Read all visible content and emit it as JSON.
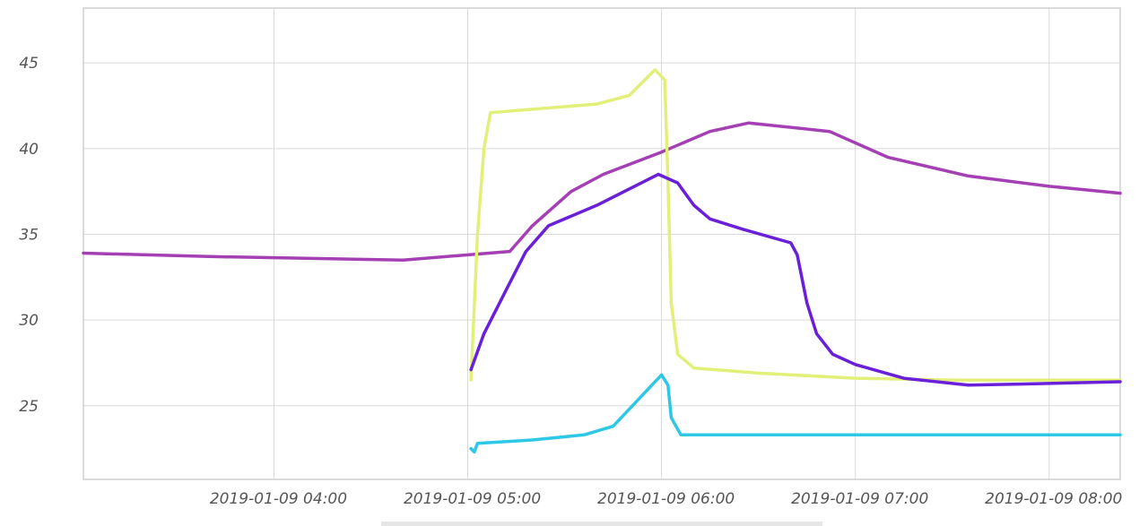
{
  "chart_data": {
    "type": "line",
    "title": "",
    "xlabel": "",
    "ylabel": "",
    "xlim": [
      "2019-01-09 03:01",
      "2019-01-09 08:22"
    ],
    "ylim": [
      20.7,
      48.2
    ],
    "x_ticks": [
      "2019-01-09 04:00",
      "2019-01-09 05:00",
      "2019-01-09 06:00",
      "2019-01-09 07:00",
      "2019-01-09 08:00"
    ],
    "y_ticks": [
      25,
      30,
      35,
      40,
      45
    ],
    "grid": true,
    "series": [
      {
        "color": "#a43fb4",
        "points": [
          [
            "2019-01-09 03:01",
            33.9
          ],
          [
            "2019-01-09 03:40",
            33.7
          ],
          [
            "2019-01-09 04:40",
            33.5
          ],
          [
            "2019-01-09 05:13",
            34.0
          ],
          [
            "2019-01-09 05:20",
            35.5
          ],
          [
            "2019-01-09 05:32",
            37.5
          ],
          [
            "2019-01-09 05:42",
            38.5
          ],
          [
            "2019-01-09 06:00",
            39.8
          ],
          [
            "2019-01-09 06:15",
            41.0
          ],
          [
            "2019-01-09 06:27",
            41.5
          ],
          [
            "2019-01-09 06:52",
            41.0
          ],
          [
            "2019-01-09 07:10",
            39.5
          ],
          [
            "2019-01-09 07:35",
            38.4
          ],
          [
            "2019-01-09 08:00",
            37.8
          ],
          [
            "2019-01-09 08:22",
            37.4
          ]
        ]
      },
      {
        "color": "#e2f07a",
        "points": [
          [
            "2019-01-09 05:01",
            26.5
          ],
          [
            "2019-01-09 05:03",
            35.0
          ],
          [
            "2019-01-09 05:05",
            40.0
          ],
          [
            "2019-01-09 05:07",
            42.1
          ],
          [
            "2019-01-09 05:20",
            42.3
          ],
          [
            "2019-01-09 05:40",
            42.6
          ],
          [
            "2019-01-09 05:50",
            43.1
          ],
          [
            "2019-01-09 05:58",
            44.6
          ],
          [
            "2019-01-09 06:01",
            44.0
          ],
          [
            "2019-01-09 06:02",
            38.0
          ],
          [
            "2019-01-09 06:03",
            31.0
          ],
          [
            "2019-01-09 06:05",
            28.0
          ],
          [
            "2019-01-09 06:10",
            27.2
          ],
          [
            "2019-01-09 06:30",
            26.9
          ],
          [
            "2019-01-09 07:00",
            26.6
          ],
          [
            "2019-01-09 07:30",
            26.5
          ],
          [
            "2019-01-09 08:22",
            26.5
          ]
        ]
      },
      {
        "color": "#6a1fd8",
        "points": [
          [
            "2019-01-09 05:01",
            27.1
          ],
          [
            "2019-01-09 05:05",
            29.2
          ],
          [
            "2019-01-09 05:12",
            31.8
          ],
          [
            "2019-01-09 05:18",
            34.0
          ],
          [
            "2019-01-09 05:25",
            35.5
          ],
          [
            "2019-01-09 05:40",
            36.7
          ],
          [
            "2019-01-09 05:59",
            38.5
          ],
          [
            "2019-01-09 06:05",
            38.0
          ],
          [
            "2019-01-09 06:10",
            36.7
          ],
          [
            "2019-01-09 06:15",
            35.9
          ],
          [
            "2019-01-09 06:25",
            35.3
          ],
          [
            "2019-01-09 06:40",
            34.5
          ],
          [
            "2019-01-09 06:42",
            33.8
          ],
          [
            "2019-01-09 06:45",
            31.0
          ],
          [
            "2019-01-09 06:48",
            29.2
          ],
          [
            "2019-01-09 06:53",
            28.0
          ],
          [
            "2019-01-09 07:00",
            27.4
          ],
          [
            "2019-01-09 07:15",
            26.6
          ],
          [
            "2019-01-09 07:35",
            26.2
          ],
          [
            "2019-01-09 08:00",
            26.3
          ],
          [
            "2019-01-09 08:22",
            26.4
          ]
        ]
      },
      {
        "color": "#2ec8e6",
        "points": [
          [
            "2019-01-09 05:01",
            22.5
          ],
          [
            "2019-01-09 05:02",
            22.3
          ],
          [
            "2019-01-09 05:03",
            22.8
          ],
          [
            "2019-01-09 05:20",
            23.0
          ],
          [
            "2019-01-09 05:36",
            23.3
          ],
          [
            "2019-01-09 05:45",
            23.8
          ],
          [
            "2019-01-09 05:50",
            24.8
          ],
          [
            "2019-01-09 06:00",
            26.8
          ],
          [
            "2019-01-09 06:02",
            26.2
          ],
          [
            "2019-01-09 06:03",
            24.3
          ],
          [
            "2019-01-09 06:06",
            23.3
          ],
          [
            "2019-01-09 08:22",
            23.3
          ]
        ]
      }
    ]
  }
}
